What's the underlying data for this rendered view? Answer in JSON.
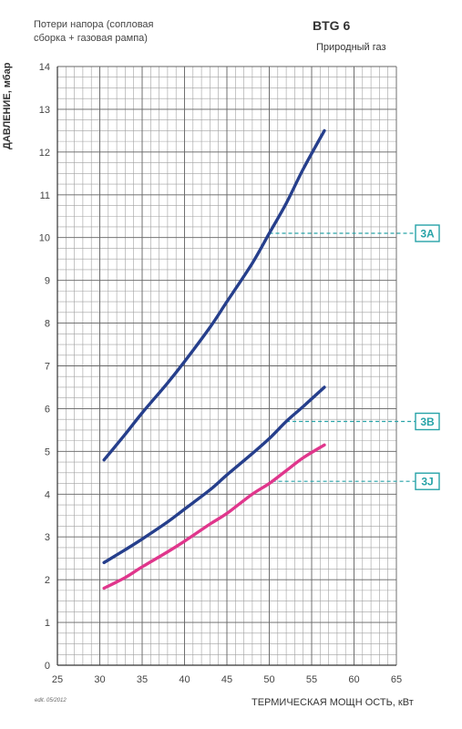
{
  "header": {
    "subtitle_line1": "Потери напора (сопловая",
    "subtitle_line2": "сборка + газовая рампа)",
    "model": "BTG 6",
    "fuel": "Природный газ",
    "edition": "edit. 05/2012"
  },
  "colors": {
    "grid": "#a0a0a0",
    "blue_series": "#263f8c",
    "pink_series": "#e0368c",
    "marker": "#27a3a8"
  },
  "chart_data": {
    "type": "line",
    "xlabel": "ТЕРМИЧЕСКАЯ МОЩН ОСТЬ, кВт",
    "ylabel": "ДАВЛЕНИЕ, мбар",
    "xlim": [
      25,
      65
    ],
    "ylim": [
      0,
      14
    ],
    "x_ticks": [
      "25",
      "30",
      "35",
      "40",
      "45",
      "50",
      "55",
      "60",
      "65"
    ],
    "y_ticks": [
      "0",
      "1",
      "2",
      "3",
      "4",
      "5",
      "6",
      "7",
      "8",
      "9",
      "10",
      "11",
      "12",
      "13",
      "14"
    ],
    "grid": true,
    "series": [
      {
        "name": "3A",
        "color": "blue",
        "x": [
          30.5,
          33,
          35,
          38,
          40,
          43,
          45,
          48,
          50,
          52,
          54,
          56.5
        ],
        "y": [
          4.8,
          5.4,
          5.9,
          6.6,
          7.1,
          7.9,
          8.5,
          9.4,
          10.1,
          10.8,
          11.6,
          12.5
        ],
        "marker_y": 10.1
      },
      {
        "name": "3B",
        "color": "blue",
        "x": [
          30.5,
          33,
          35,
          38,
          40,
          43,
          45,
          48,
          50,
          52,
          54,
          56.5
        ],
        "y": [
          2.4,
          2.7,
          2.95,
          3.35,
          3.65,
          4.1,
          4.45,
          4.95,
          5.3,
          5.7,
          6.05,
          6.5
        ],
        "marker_y": 5.7
      },
      {
        "name": "3J",
        "color": "pink",
        "x": [
          30.5,
          33,
          35,
          38,
          40,
          43,
          45,
          48,
          50,
          52,
          54,
          56.5
        ],
        "y": [
          1.8,
          2.05,
          2.3,
          2.65,
          2.9,
          3.3,
          3.55,
          4.0,
          4.25,
          4.55,
          4.85,
          5.15
        ],
        "marker_y": 4.3
      }
    ]
  }
}
